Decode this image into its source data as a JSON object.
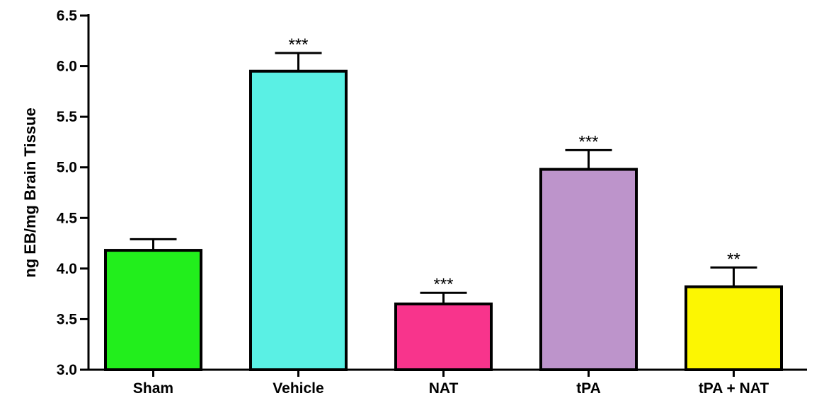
{
  "chart_data": {
    "type": "bar",
    "title": "",
    "xlabel": "",
    "ylabel": "ng EB/mg Brain Tissue",
    "ylim": [
      3.0,
      6.5
    ],
    "yticks": [
      "3.0",
      "3.5",
      "4.0",
      "4.5",
      "5.0",
      "5.5",
      "6.0",
      "6.5"
    ],
    "grid": false,
    "categories": [
      "Sham",
      "Vehicle",
      "NAT",
      "tPA",
      "tPA + NAT"
    ],
    "values": [
      4.18,
      5.95,
      3.65,
      4.98,
      3.82
    ],
    "errors": [
      0.11,
      0.18,
      0.11,
      0.19,
      0.19
    ],
    "significance": [
      "",
      "***",
      "***",
      "***",
      "**"
    ],
    "colors": [
      "#22ee1c",
      "#5af0e4",
      "#f8348c",
      "#bd94cb",
      "#fcf602"
    ]
  }
}
